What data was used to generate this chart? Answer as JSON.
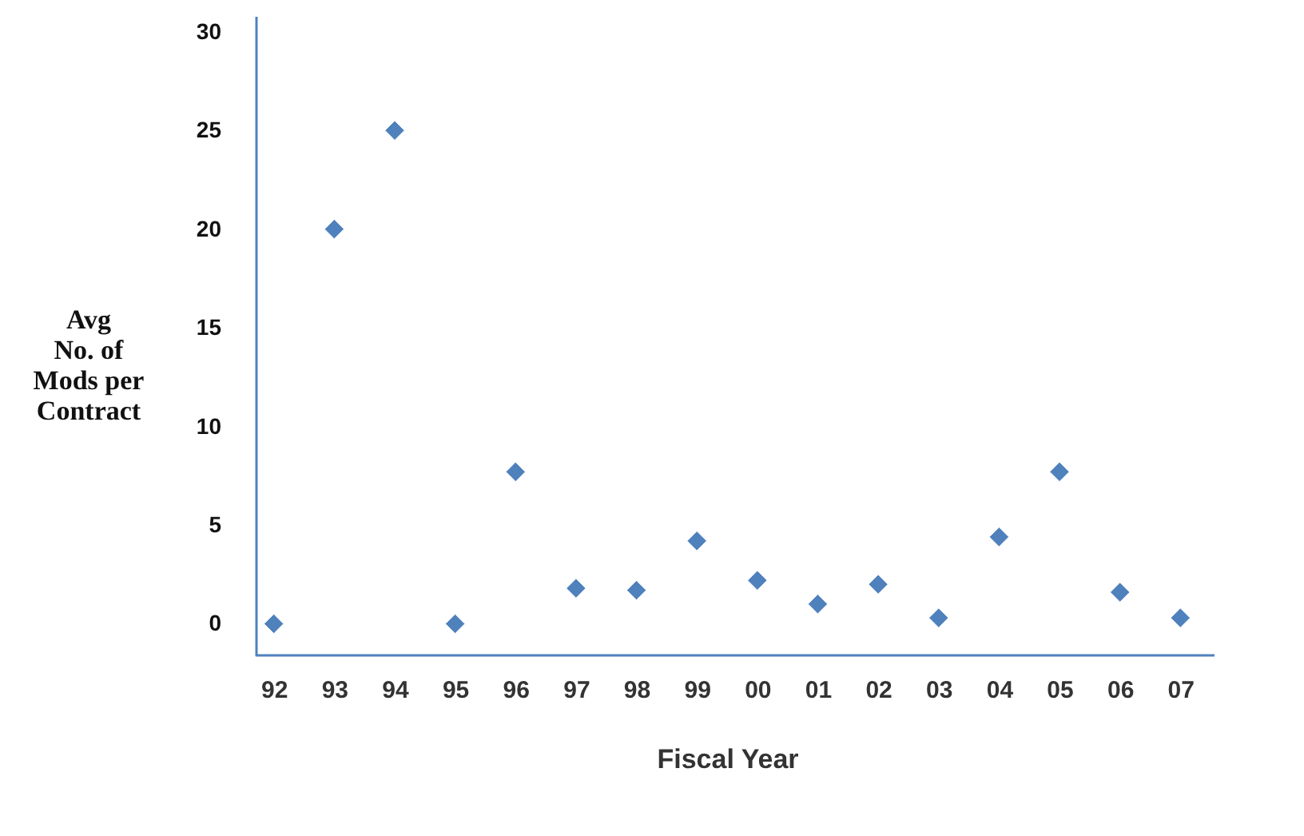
{
  "chart_data": {
    "type": "scatter",
    "xlabel": "Fiscal Year",
    "ylabel": "Avg\nNo. of\nMods per\nContract",
    "categories": [
      "92",
      "93",
      "94",
      "95",
      "96",
      "97",
      "98",
      "99",
      "00",
      "01",
      "02",
      "03",
      "04",
      "05",
      "06",
      "07"
    ],
    "series": [
      {
        "color": "#4f81bd",
        "values": [
          0,
          20,
          25,
          0,
          7.7,
          1.8,
          1.7,
          4.2,
          2.2,
          1.0,
          2.0,
          0.3,
          4.4,
          7.7,
          1.6,
          0.3
        ]
      }
    ],
    "marker": "diamond",
    "ylim": [
      -1.6,
      30.8
    ],
    "yticks": [
      0,
      5,
      10,
      15,
      20,
      25,
      30
    ],
    "grid": false,
    "legend": false
  }
}
